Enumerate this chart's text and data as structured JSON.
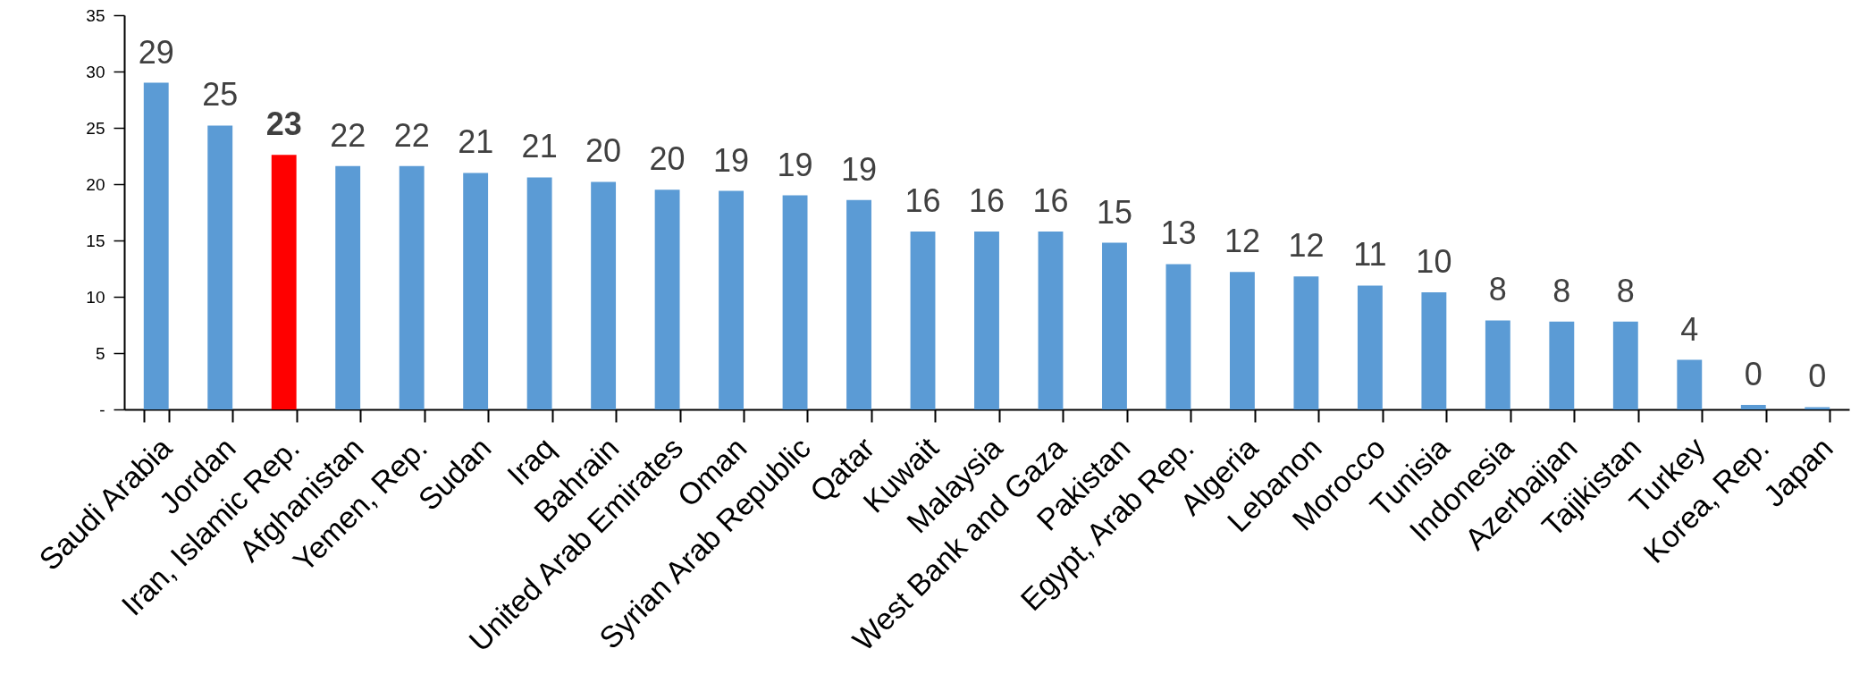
{
  "chart_data": {
    "type": "bar",
    "categories": [
      "Saudi Arabia",
      "Jordan",
      "Iran, Islamic Rep.",
      "Afghanistan",
      "Yemen, Rep.",
      "Sudan",
      "Iraq",
      "Bahrain",
      "United Arab Emirates",
      "Oman",
      "Syrian Arab Republic",
      "Qatar",
      "Kuwait",
      "Malaysia",
      "West Bank and Gaza",
      "Pakistan",
      "Egypt, Arab Rep.",
      "Algeria",
      "Lebanon",
      "Morocco",
      "Tunisia",
      "Indonesia",
      "Azerbaijan",
      "Tajikistan",
      "Turkey",
      "Korea, Rep.",
      "Japan"
    ],
    "values": [
      29.0,
      25.2,
      22.6,
      21.6,
      21.6,
      21.0,
      20.6,
      20.2,
      19.5,
      19.4,
      19.0,
      18.6,
      15.8,
      15.8,
      15.8,
      14.8,
      12.9,
      12.2,
      11.8,
      11.0,
      10.4,
      7.9,
      7.8,
      7.8,
      4.4,
      0.4,
      0.2
    ],
    "colors": [
      "#5b9bd5",
      "#5b9bd5",
      "#ff0000",
      "#5b9bd5",
      "#5b9bd5",
      "#5b9bd5",
      "#5b9bd5",
      "#5b9bd5",
      "#5b9bd5",
      "#5b9bd5",
      "#5b9bd5",
      "#5b9bd5",
      "#5b9bd5",
      "#5b9bd5",
      "#5b9bd5",
      "#5b9bd5",
      "#5b9bd5",
      "#5b9bd5",
      "#5b9bd5",
      "#5b9bd5",
      "#5b9bd5",
      "#5b9bd5",
      "#5b9bd5",
      "#5b9bd5",
      "#5b9bd5",
      "#5b9bd5",
      "#5b9bd5"
    ],
    "value_labels": [
      "29",
      "25",
      "23",
      "22",
      "22",
      "21",
      "21",
      "20",
      "20",
      "19",
      "19",
      "19",
      "16",
      "16",
      "16",
      "15",
      "13",
      "12",
      "12",
      "11",
      "10",
      "8",
      "8",
      "8",
      "4",
      "0",
      "0"
    ],
    "ylim": [
      0,
      35
    ],
    "yticks": [
      {
        "value": 0,
        "label": "-"
      },
      5,
      10,
      15,
      20,
      25,
      30,
      35
    ]
  }
}
